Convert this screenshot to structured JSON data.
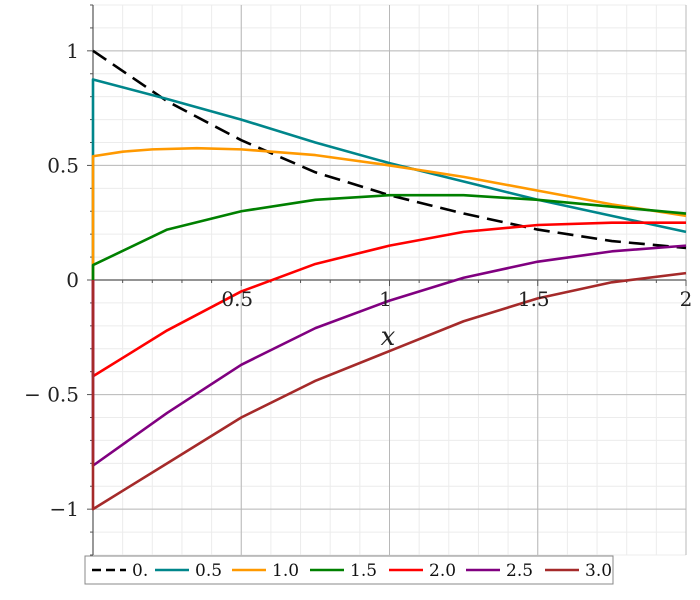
{
  "chart_data": {
    "type": "line",
    "title": "",
    "xlabel": "x",
    "ylabel": "",
    "xlim": [
      0,
      2
    ],
    "ylim": [
      -1.2,
      1.2
    ],
    "grid": true,
    "legend_position": "bottom",
    "x_ticks": [
      {
        "value": 0.5,
        "label": "0.5"
      },
      {
        "value": 1,
        "label": "1"
      },
      {
        "value": 1.5,
        "label": "1.5"
      },
      {
        "value": 2,
        "label": "2"
      }
    ],
    "y_ticks": [
      {
        "value": 1,
        "label": "1"
      },
      {
        "value": 0.5,
        "label": "0.5"
      },
      {
        "value": 0,
        "label": "0"
      },
      {
        "value": -0.5,
        "label": "− 0.5"
      },
      {
        "value": -1,
        "label": "−1"
      }
    ],
    "series": [
      {
        "name": "0.",
        "color": "#000000",
        "dash": true,
        "x": [
          0,
          0.25,
          0.5,
          0.75,
          1,
          1.25,
          1.5,
          1.75,
          2
        ],
        "y": [
          1.0,
          0.78,
          0.61,
          0.47,
          0.37,
          0.29,
          0.22,
          0.17,
          0.14
        ]
      },
      {
        "name": "0.5",
        "color": "#00868b",
        "dash": false,
        "x": [
          0,
          0,
          0.25,
          0.5,
          0.75,
          1,
          1.25,
          1.5,
          1.75,
          2
        ],
        "y": [
          0,
          0.875,
          0.79,
          0.7,
          0.6,
          0.51,
          0.43,
          0.35,
          0.28,
          0.21
        ]
      },
      {
        "name": "1.0",
        "color": "#ff9900",
        "dash": false,
        "x": [
          0,
          0,
          0.1,
          0.2,
          0.35,
          0.5,
          0.75,
          1,
          1.25,
          1.5,
          1.75,
          2
        ],
        "y": [
          0,
          0.54,
          0.56,
          0.57,
          0.575,
          0.57,
          0.545,
          0.5,
          0.45,
          0.39,
          0.33,
          0.28
        ]
      },
      {
        "name": "1.5",
        "color": "#008000",
        "dash": false,
        "x": [
          0,
          0,
          0.25,
          0.5,
          0.75,
          1,
          1.25,
          1.5,
          1.75,
          2
        ],
        "y": [
          0,
          0.065,
          0.22,
          0.3,
          0.35,
          0.37,
          0.37,
          0.35,
          0.32,
          0.29
        ]
      },
      {
        "name": "2.0",
        "color": "#ff0000",
        "dash": false,
        "x": [
          0,
          0,
          0.25,
          0.5,
          0.75,
          1,
          1.25,
          1.5,
          1.75,
          2
        ],
        "y": [
          0,
          -0.42,
          -0.22,
          -0.05,
          0.07,
          0.15,
          0.21,
          0.24,
          0.25,
          0.25
        ]
      },
      {
        "name": "2.5",
        "color": "#800080",
        "dash": false,
        "x": [
          0,
          0,
          0.25,
          0.5,
          0.75,
          1,
          1.25,
          1.5,
          1.75,
          2
        ],
        "y": [
          0,
          -0.81,
          -0.58,
          -0.37,
          -0.21,
          -0.09,
          0.01,
          0.08,
          0.125,
          0.15
        ]
      },
      {
        "name": "3.0",
        "color": "#a52a2a",
        "dash": false,
        "x": [
          0,
          0,
          0.25,
          0.5,
          0.75,
          1,
          1.25,
          1.5,
          1.75,
          2
        ],
        "y": [
          0,
          -1.0,
          -0.8,
          -0.6,
          -0.44,
          -0.31,
          -0.18,
          -0.08,
          -0.01,
          0.03
        ]
      }
    ]
  }
}
